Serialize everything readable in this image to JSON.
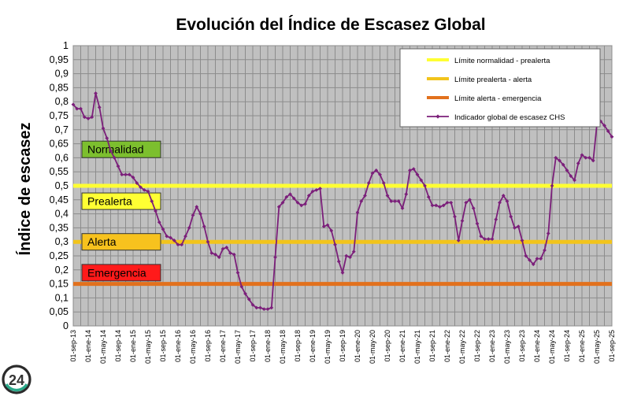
{
  "chart_data": {
    "type": "line",
    "title": "Evolución del Índice de Escasez Global",
    "ylabel": "Índice de escasez",
    "xlabel": "",
    "ylim": [
      0,
      1
    ],
    "yticks": [
      "0",
      "0,05",
      "0,1",
      "0,15",
      "0,2",
      "0,25",
      "0,3",
      "0,35",
      "0,4",
      "0,45",
      "0,5",
      "0,55",
      "0,6",
      "0,65",
      "0,7",
      "0,75",
      "0,8",
      "0,85",
      "0,9",
      "0,95",
      "1"
    ],
    "xticks": [
      "01-sep-13",
      "01-ene-14",
      "01-may-14",
      "01-sep-14",
      "01-ene-15",
      "01-may-15",
      "01-sep-15",
      "01-ene-16",
      "01-may-16",
      "01-sep-16",
      "01-ene-17",
      "01-may-17",
      "01-sep-17",
      "01-ene-18",
      "01-may-18",
      "01-sep-18",
      "01-ene-19",
      "01-may-19",
      "01-sep-19",
      "01-ene-20",
      "01-may-20",
      "01-sep-20",
      "01-ene-21",
      "01-may-21",
      "01-sep-21",
      "01-ene-22",
      "01-may-22",
      "01-sep-22",
      "01-ene-23",
      "01-may-23",
      "01-sep-23",
      "01-ene-24",
      "01-may-24",
      "01-sep-24",
      "01-ene-25",
      "01-may-25",
      "01-sep-25"
    ],
    "grid": true,
    "legend_position": "top-right",
    "thresholds": [
      {
        "name": "Límite normalidad - prealerta",
        "value": 0.5,
        "color": "#ffff33"
      },
      {
        "name": "Límite prealerta - alerta",
        "value": 0.3,
        "color": "#f2c41b"
      },
      {
        "name": "Límite alerta - emergencia",
        "value": 0.15,
        "color": "#e2711d"
      }
    ],
    "zones": [
      {
        "label": "Normalidad",
        "color": "#7cbf2e",
        "value": 0.63
      },
      {
        "label": "Prealerta",
        "color": "#ffff33",
        "value": 0.445
      },
      {
        "label": "Alerta",
        "color": "#f7c21e",
        "value": 0.3
      },
      {
        "label": "Emergencia",
        "color": "#ff1a1a",
        "value": 0.19
      }
    ],
    "series": [
      {
        "name": "Indicador global de escasez CHS",
        "color": "#7b1f7a",
        "values": [
          0.79,
          0.775,
          0.775,
          0.745,
          0.74,
          0.745,
          0.83,
          0.78,
          0.705,
          0.67,
          0.625,
          0.6,
          0.57,
          0.54,
          0.54,
          0.54,
          0.53,
          0.51,
          0.495,
          0.485,
          0.48,
          0.445,
          0.41,
          0.37,
          0.345,
          0.32,
          0.315,
          0.305,
          0.29,
          0.29,
          0.32,
          0.35,
          0.395,
          0.425,
          0.4,
          0.355,
          0.3,
          0.26,
          0.255,
          0.245,
          0.275,
          0.28,
          0.26,
          0.255,
          0.19,
          0.14,
          0.115,
          0.095,
          0.075,
          0.065,
          0.065,
          0.06,
          0.06,
          0.065,
          0.245,
          0.425,
          0.44,
          0.46,
          0.47,
          0.455,
          0.44,
          0.43,
          0.435,
          0.465,
          0.48,
          0.485,
          0.49,
          0.355,
          0.36,
          0.34,
          0.29,
          0.23,
          0.19,
          0.25,
          0.245,
          0.265,
          0.405,
          0.445,
          0.465,
          0.51,
          0.545,
          0.555,
          0.54,
          0.51,
          0.465,
          0.445,
          0.445,
          0.445,
          0.42,
          0.47,
          0.555,
          0.56,
          0.54,
          0.52,
          0.5,
          0.46,
          0.43,
          0.43,
          0.425,
          0.43,
          0.44,
          0.44,
          0.39,
          0.305,
          0.375,
          0.44,
          0.45,
          0.42,
          0.365,
          0.32,
          0.31,
          0.31,
          0.31,
          0.38,
          0.44,
          0.465,
          0.445,
          0.39,
          0.35,
          0.355,
          0.305,
          0.25,
          0.235,
          0.22,
          0.24,
          0.24,
          0.27,
          0.33,
          0.5,
          0.6,
          0.59,
          0.575,
          0.555,
          0.535,
          0.52,
          0.58,
          0.61,
          0.6,
          0.6,
          0.59,
          0.72,
          0.73,
          0.715,
          0.695,
          0.675
        ]
      }
    ]
  },
  "badge": {
    "text": "24"
  }
}
